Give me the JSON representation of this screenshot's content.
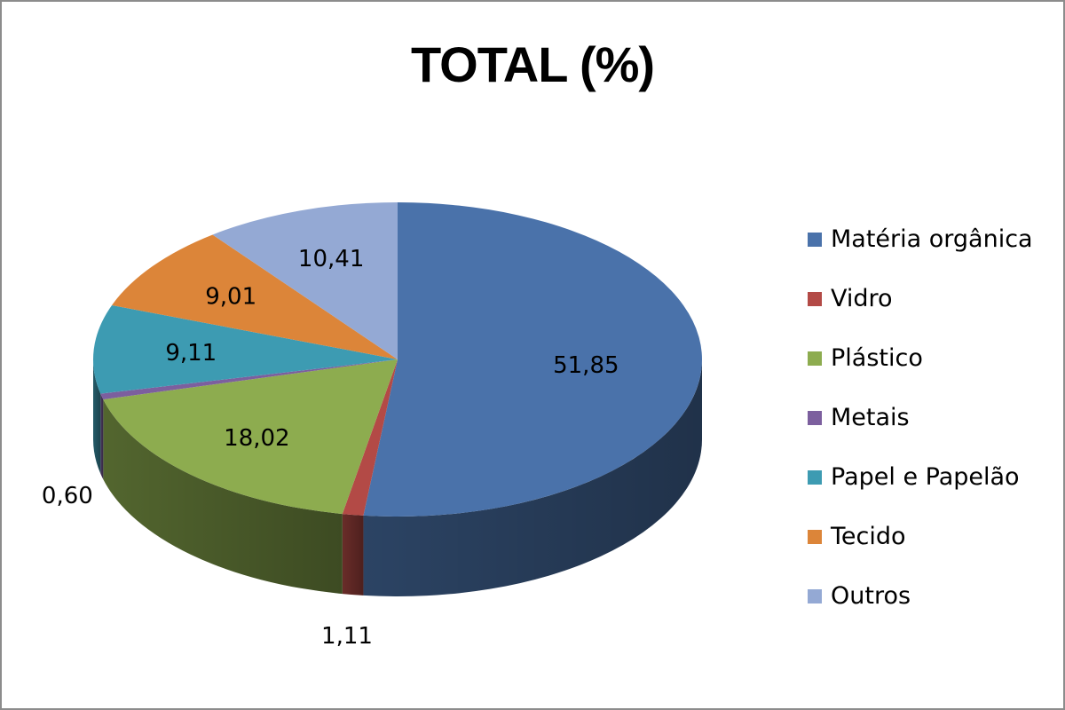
{
  "chart_data": {
    "type": "pie",
    "title": "TOTAL (%)",
    "slices": [
      {
        "label": "Matéria orgânica",
        "value": 51.85,
        "value_label": "51,85",
        "color": "#4a72aa"
      },
      {
        "label": "Vidro",
        "value": 1.11,
        "value_label": "1,11",
        "color": "#b34a46"
      },
      {
        "label": "Plástico",
        "value": 18.02,
        "value_label": "18,02",
        "color": "#8dac4f"
      },
      {
        "label": "Metais",
        "value": 0.6,
        "value_label": "0,60",
        "color": "#7c5f9e"
      },
      {
        "label": "Papel e Papelão",
        "value": 9.11,
        "value_label": "9,11",
        "color": "#3d9bb2"
      },
      {
        "label": "Tecido",
        "value": 9.01,
        "value_label": "9,01",
        "color": "#dc8539"
      },
      {
        "label": "Outros",
        "value": 10.41,
        "value_label": "10,41",
        "color": "#94a9d4"
      }
    ],
    "legend_position": "right",
    "style": "3d-pie"
  }
}
